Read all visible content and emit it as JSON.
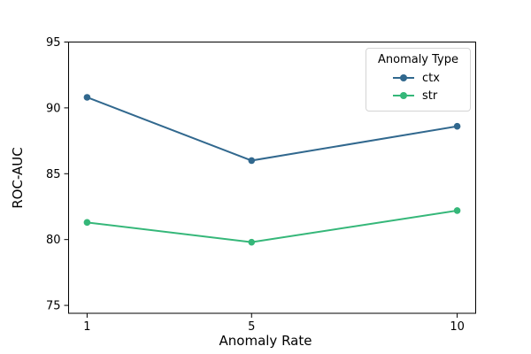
{
  "chart_data": {
    "type": "line",
    "title": "",
    "xlabel": "Anomaly Rate",
    "ylabel": "ROC-AUC",
    "x": [
      1,
      5,
      10
    ],
    "series": [
      {
        "name": "ctx",
        "values": [
          90.8,
          86.0,
          88.6
        ],
        "color": "#31688e"
      },
      {
        "name": "str",
        "values": [
          81.3,
          79.8,
          82.2
        ],
        "color": "#35b779"
      }
    ],
    "marker": "circle",
    "legend_title": "Anomaly Type",
    "legend_position": "upper right",
    "xlim": [
      0.55,
      10.45
    ],
    "ylim": [
      74.4,
      95.0
    ],
    "xticks": [
      1,
      5,
      10
    ],
    "yticks": [
      75,
      80,
      85,
      90,
      95
    ],
    "grid": false,
    "spine_color": "#000000"
  }
}
